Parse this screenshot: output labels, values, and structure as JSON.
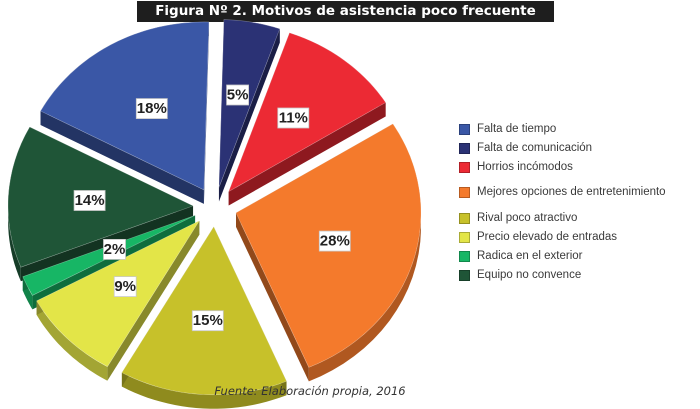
{
  "title": "Figura Nº 2. Motivos de asistencia poco frecuente",
  "source": "Fuente: Elaboración propia, 2016",
  "chart_data": {
    "type": "pie",
    "title": "Figura Nº 2. Motivos de asistencia poco frecuente",
    "exploded": true,
    "three_d": true,
    "legend_position": "right",
    "series": [
      {
        "name": "Falta de tiempo",
        "value": 18,
        "label": "18%",
        "color": "#3a57a6"
      },
      {
        "name": "Falta de comunicación",
        "value": 5,
        "label": "5%",
        "color": "#2b3275"
      },
      {
        "name": "Horrios incómodos",
        "value": 11,
        "label": "11%",
        "color": "#ec2a34"
      },
      {
        "name": "Mejores opciones de entretenimiento",
        "value": 28,
        "label": "28%",
        "color": "#f47a2c"
      },
      {
        "name": "Rival poco atractivo",
        "value": 15,
        "label": "15%",
        "color": "#c7c12a"
      },
      {
        "name": "Precio elevado de entradas",
        "value": 9,
        "label": "9%",
        "color": "#e3e548"
      },
      {
        "name": "Radica en el exterior",
        "value": 2,
        "label": "2%",
        "color": "#17b665"
      },
      {
        "name": "Equipo no convence",
        "value": 14,
        "label": "14%",
        "color": "#1f5537"
      }
    ]
  }
}
